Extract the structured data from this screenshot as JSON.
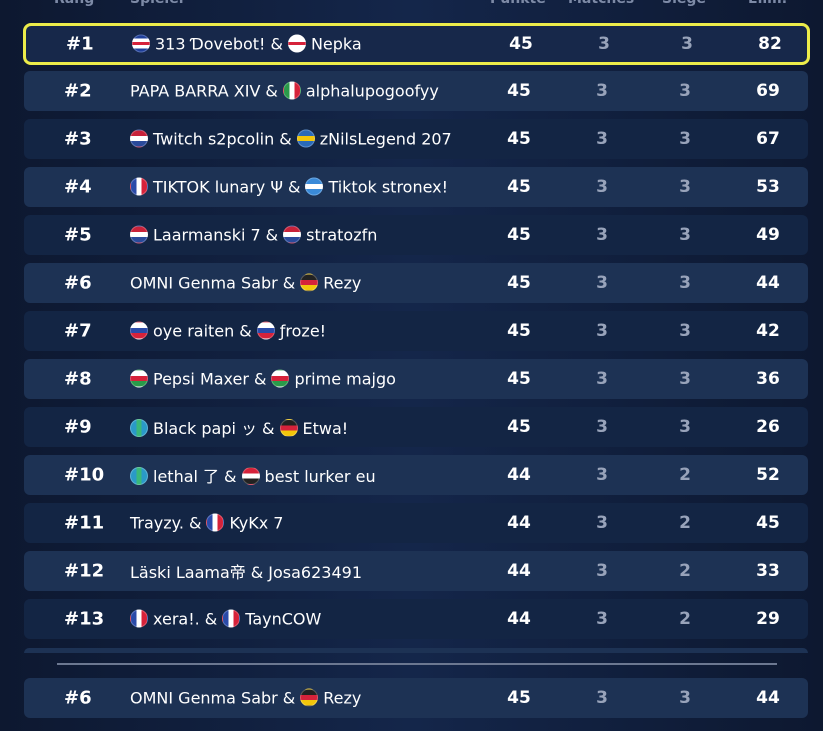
{
  "table": {
    "columns": [
      "Rang",
      "Spieler",
      "Punkte",
      "Matches",
      "Siege",
      "Elim."
    ],
    "joiner": "&",
    "rows": [
      {
        "rank": "#1",
        "players": [
          {
            "name": "313 Ɗovebot!",
            "flag": {
              "dir": "h",
              "colors": [
                "#1f3f9a",
                "#ffffff",
                "#d6223a",
                "#ffffff",
                "#1f3f9a"
              ]
            }
          },
          {
            "name": "Nepka",
            "flag": {
              "dir": "h",
              "colors": [
                "#ffffff",
                "#ffffff",
                "#d6223a",
                "#ffffff",
                "#ffffff"
              ]
            }
          }
        ],
        "points": 45,
        "matches": 3,
        "wins": 3,
        "elims": 82
      },
      {
        "rank": "#2",
        "players": [
          {
            "name": "PAPA BARRA XIV"
          },
          {
            "name": "alphalupogoofyy",
            "flag": {
              "dir": "v",
              "colors": [
                "#2a9a4a",
                "#ffffff",
                "#d6223a"
              ]
            }
          }
        ],
        "points": 45,
        "matches": 3,
        "wins": 3,
        "elims": 69
      },
      {
        "rank": "#3",
        "players": [
          {
            "name": "Twitch s2pcolin",
            "flag": {
              "dir": "h",
              "colors": [
                "#c8223a",
                "#ffffff",
                "#2a4a9a"
              ]
            }
          },
          {
            "name": "zNilsLegend 207",
            "flag": {
              "dir": "h",
              "colors": [
                "#2a6ab8",
                "#f2c60a",
                "#2a6ab8"
              ]
            }
          }
        ],
        "points": 45,
        "matches": 3,
        "wins": 3,
        "elims": 67
      },
      {
        "rank": "#4",
        "players": [
          {
            "name": "TIKTOK lunary Ψ",
            "flag": {
              "dir": "v",
              "colors": [
                "#2a4aa8",
                "#ffffff",
                "#d6223a"
              ]
            }
          },
          {
            "name": "Tiktok stronex!",
            "flag": {
              "dir": "h",
              "colors": [
                "#3a8ad8",
                "#ffffff",
                "#3a8ad8"
              ]
            }
          }
        ],
        "points": 45,
        "matches": 3,
        "wins": 3,
        "elims": 53
      },
      {
        "rank": "#5",
        "players": [
          {
            "name": "Laarmanski 7",
            "flag": {
              "dir": "h",
              "colors": [
                "#c8223a",
                "#ffffff",
                "#2a4a9a"
              ]
            }
          },
          {
            "name": "stratozfn",
            "flag": {
              "dir": "h",
              "colors": [
                "#c8223a",
                "#ffffff",
                "#2a4a9a"
              ]
            }
          }
        ],
        "points": 45,
        "matches": 3,
        "wins": 3,
        "elims": 49
      },
      {
        "rank": "#6",
        "players": [
          {
            "name": "OMNI Genma Sabr"
          },
          {
            "name": "Rezy",
            "flag": {
              "dir": "h",
              "colors": [
                "#222222",
                "#d6223a",
                "#f2c60a"
              ]
            }
          }
        ],
        "points": 45,
        "matches": 3,
        "wins": 3,
        "elims": 44
      },
      {
        "rank": "#7",
        "players": [
          {
            "name": "oye raiten",
            "flag": {
              "dir": "h",
              "colors": [
                "#ffffff",
                "#2a4aa8",
                "#d6223a"
              ]
            }
          },
          {
            "name": "ƒroze!",
            "flag": {
              "dir": "h",
              "colors": [
                "#ffffff",
                "#2a4aa8",
                "#d6223a"
              ]
            }
          }
        ],
        "points": 45,
        "matches": 3,
        "wins": 3,
        "elims": 42
      },
      {
        "rank": "#8",
        "players": [
          {
            "name": "Pepsi Maxer",
            "flag": {
              "dir": "h",
              "colors": [
                "#ffffff",
                "#d6223a",
                "#2a9a4a"
              ]
            }
          },
          {
            "name": "prime majgo",
            "flag": {
              "dir": "h",
              "colors": [
                "#ffffff",
                "#d6223a",
                "#2a9a4a"
              ]
            }
          }
        ],
        "points": 45,
        "matches": 3,
        "wins": 3,
        "elims": 36
      },
      {
        "rank": "#9",
        "players": [
          {
            "name": "Black papi ッ",
            "flag": {
              "dir": "v",
              "colors": [
                "#2a9ac8",
                "#3ab87a",
                "#2a9ac8"
              ]
            }
          },
          {
            "name": "Etwa!",
            "flag": {
              "dir": "h",
              "colors": [
                "#222222",
                "#d6223a",
                "#f2c60a"
              ]
            }
          }
        ],
        "points": 45,
        "matches": 3,
        "wins": 3,
        "elims": 26
      },
      {
        "rank": "#10",
        "players": [
          {
            "name": "lethal 了",
            "flag": {
              "dir": "v",
              "colors": [
                "#2a9ac8",
                "#3ab87a",
                "#2a9ac8"
              ]
            }
          },
          {
            "name": "best lurker eu",
            "flag": {
              "dir": "h",
              "colors": [
                "#d6223a",
                "#ffffff",
                "#222222"
              ]
            }
          }
        ],
        "points": 44,
        "matches": 3,
        "wins": 2,
        "elims": 52
      },
      {
        "rank": "#11",
        "players": [
          {
            "name": "Trayzy."
          },
          {
            "name": "KyKx 7",
            "flag": {
              "dir": "v",
              "colors": [
                "#2a4aa8",
                "#ffffff",
                "#d6223a"
              ]
            }
          }
        ],
        "points": 44,
        "matches": 3,
        "wins": 2,
        "elims": 45
      },
      {
        "rank": "#12",
        "players": [
          {
            "name": "Läski Laama帝"
          },
          {
            "name": "Josa623491"
          }
        ],
        "points": 44,
        "matches": 3,
        "wins": 2,
        "elims": 33
      },
      {
        "rank": "#13",
        "players": [
          {
            "name": "xera!.",
            "flag": {
              "dir": "v",
              "colors": [
                "#2a4aa8",
                "#ffffff",
                "#d6223a"
              ]
            }
          },
          {
            "name": "TaynCOW",
            "flag": {
              "dir": "v",
              "colors": [
                "#2a4aa8",
                "#ffffff",
                "#d6223a"
              ]
            }
          }
        ],
        "points": 44,
        "matches": 3,
        "wins": 2,
        "elims": 29
      }
    ],
    "own_row": {
      "rank": "#6",
      "players": [
        {
          "name": "OMNI Genma Sabr"
        },
        {
          "name": "Rezy",
          "flag": {
            "dir": "h",
            "colors": [
              "#222222",
              "#d6223a",
              "#f2c60a"
            ]
          }
        }
      ],
      "points": 45,
      "matches": 3,
      "wins": 3,
      "elims": 44
    }
  }
}
